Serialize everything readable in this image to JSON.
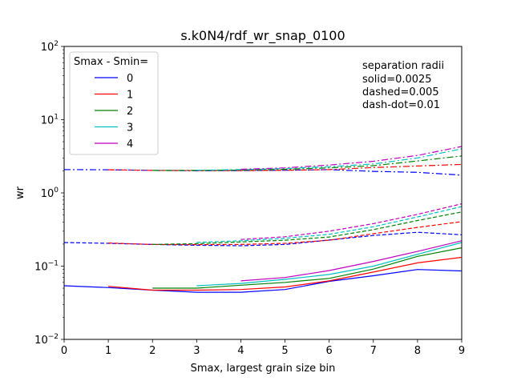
{
  "chart_data": {
    "type": "line",
    "title": "s.k0N4/rdf_wr_snap_0100",
    "xlabel": "Smax, largest grain size bin",
    "ylabel": "wr",
    "xlim": [
      0,
      9
    ],
    "ylim": [
      0.01,
      100
    ],
    "yscale": "log",
    "grid": false,
    "x_ticks": [
      "0",
      "1",
      "2",
      "3",
      "4",
      "5",
      "6",
      "7",
      "8",
      "9"
    ],
    "y_ticks": [
      {
        "value": 0.01,
        "base": "10",
        "exp": "−2"
      },
      {
        "value": 0.1,
        "base": "10",
        "exp": "−1"
      },
      {
        "value": 1,
        "base": "10",
        "exp": "0"
      },
      {
        "value": 10,
        "base": "10",
        "exp": "1"
      },
      {
        "value": 100,
        "base": "10",
        "exp": "2"
      }
    ],
    "legend": {
      "title": "Smax - Smin=",
      "placement": "upper-left",
      "entries": [
        {
          "label": "0",
          "color": "#0000ff"
        },
        {
          "label": "1",
          "color": "#ff0000"
        },
        {
          "label": "2",
          "color": "#008000"
        },
        {
          "label": "3",
          "color": "#00bfbf"
        },
        {
          "label": "4",
          "color": "#bf00bf"
        }
      ]
    },
    "annotation": [
      "separation radii",
      "solid=0.0025",
      "dashed=0.005",
      "dash-dot=0.01"
    ],
    "series": [
      {
        "smin_diff": "0",
        "radius": "0.0025",
        "style": "solid",
        "color": "#0000ff",
        "x": [
          0,
          1,
          2,
          3,
          4,
          5,
          6,
          7,
          8,
          9
        ],
        "values": [
          0.054,
          0.051,
          0.047,
          0.044,
          0.044,
          0.048,
          0.062,
          0.074,
          0.09,
          0.086
        ]
      },
      {
        "smin_diff": "1",
        "radius": "0.0025",
        "style": "solid",
        "color": "#ff0000",
        "x": [
          1,
          2,
          3,
          4,
          5,
          6,
          7,
          8,
          9
        ],
        "values": [
          0.053,
          0.047,
          0.047,
          0.048,
          0.052,
          0.063,
          0.083,
          0.111,
          0.132
        ]
      },
      {
        "smin_diff": "2",
        "radius": "0.0025",
        "style": "solid",
        "color": "#008000",
        "x": [
          2,
          3,
          4,
          5,
          6,
          7,
          8,
          9
        ],
        "values": [
          0.05,
          0.05,
          0.055,
          0.06,
          0.068,
          0.091,
          0.136,
          0.178
        ]
      },
      {
        "smin_diff": "3",
        "radius": "0.0025",
        "style": "solid",
        "color": "#00bfbf",
        "x": [
          3,
          4,
          5,
          6,
          7,
          8,
          9
        ],
        "values": [
          0.054,
          0.058,
          0.066,
          0.077,
          0.1,
          0.145,
          0.21
        ]
      },
      {
        "smin_diff": "4",
        "radius": "0.0025",
        "style": "solid",
        "color": "#bf00bf",
        "x": [
          4,
          5,
          6,
          7,
          8,
          9
        ],
        "values": [
          0.063,
          0.07,
          0.087,
          0.116,
          0.159,
          0.222
        ]
      },
      {
        "smin_diff": "0",
        "radius": "0.005",
        "style": "dashed",
        "color": "#0000ff",
        "x": [
          0,
          1,
          2,
          3,
          4,
          5,
          6,
          7,
          8,
          9
        ],
        "values": [
          0.21,
          0.205,
          0.198,
          0.193,
          0.19,
          0.198,
          0.227,
          0.262,
          0.29,
          0.268
        ]
      },
      {
        "smin_diff": "1",
        "radius": "0.005",
        "style": "dashed",
        "color": "#ff0000",
        "x": [
          1,
          2,
          3,
          4,
          5,
          6,
          7,
          8,
          9
        ],
        "values": [
          0.207,
          0.198,
          0.197,
          0.198,
          0.205,
          0.226,
          0.277,
          0.338,
          0.405
        ]
      },
      {
        "smin_diff": "2",
        "radius": "0.005",
        "style": "dashed",
        "color": "#008000",
        "x": [
          2,
          3,
          4,
          5,
          6,
          7,
          8,
          9
        ],
        "values": [
          0.198,
          0.203,
          0.214,
          0.226,
          0.25,
          0.315,
          0.42,
          0.55
        ]
      },
      {
        "smin_diff": "3",
        "radius": "0.005",
        "style": "dashed",
        "color": "#00bfbf",
        "x": [
          3,
          4,
          5,
          6,
          7,
          8,
          9
        ],
        "values": [
          0.211,
          0.222,
          0.24,
          0.272,
          0.345,
          0.47,
          0.65
        ]
      },
      {
        "smin_diff": "4",
        "radius": "0.005",
        "style": "dashed",
        "color": "#bf00bf",
        "x": [
          4,
          5,
          6,
          7,
          8,
          9
        ],
        "values": [
          0.231,
          0.252,
          0.3,
          0.38,
          0.51,
          0.71
        ]
      },
      {
        "smin_diff": "0",
        "radius": "0.01",
        "style": "dash-dot",
        "color": "#0000ff",
        "x": [
          0,
          1,
          2,
          3,
          4,
          5,
          6,
          7,
          8,
          9
        ],
        "values": [
          2.08,
          2.07,
          2.03,
          2.01,
          2.02,
          2.04,
          2.08,
          1.97,
          1.91,
          1.75
        ]
      },
      {
        "smin_diff": "1",
        "radius": "0.01",
        "style": "dash-dot",
        "color": "#ff0000",
        "x": [
          1,
          2,
          3,
          4,
          5,
          6,
          7,
          8,
          9
        ],
        "values": [
          2.07,
          2.03,
          2.02,
          2.02,
          2.04,
          2.08,
          2.22,
          2.33,
          2.45
        ]
      },
      {
        "smin_diff": "2",
        "radius": "0.01",
        "style": "dash-dot",
        "color": "#008000",
        "x": [
          2,
          3,
          4,
          5,
          6,
          7,
          8,
          9
        ],
        "values": [
          2.03,
          2.03,
          2.05,
          2.1,
          2.2,
          2.35,
          2.73,
          3.2
        ]
      },
      {
        "smin_diff": "3",
        "radius": "0.01",
        "style": "dash-dot",
        "color": "#00bfbf",
        "x": [
          3,
          4,
          5,
          6,
          7,
          8,
          9
        ],
        "values": [
          2.04,
          2.08,
          2.15,
          2.28,
          2.48,
          3.0,
          4.0
        ]
      },
      {
        "smin_diff": "4",
        "radius": "0.01",
        "style": "dash-dot",
        "color": "#bf00bf",
        "x": [
          4,
          5,
          6,
          7,
          8,
          9
        ],
        "values": [
          2.1,
          2.2,
          2.4,
          2.7,
          3.25,
          4.3
        ]
      }
    ]
  }
}
